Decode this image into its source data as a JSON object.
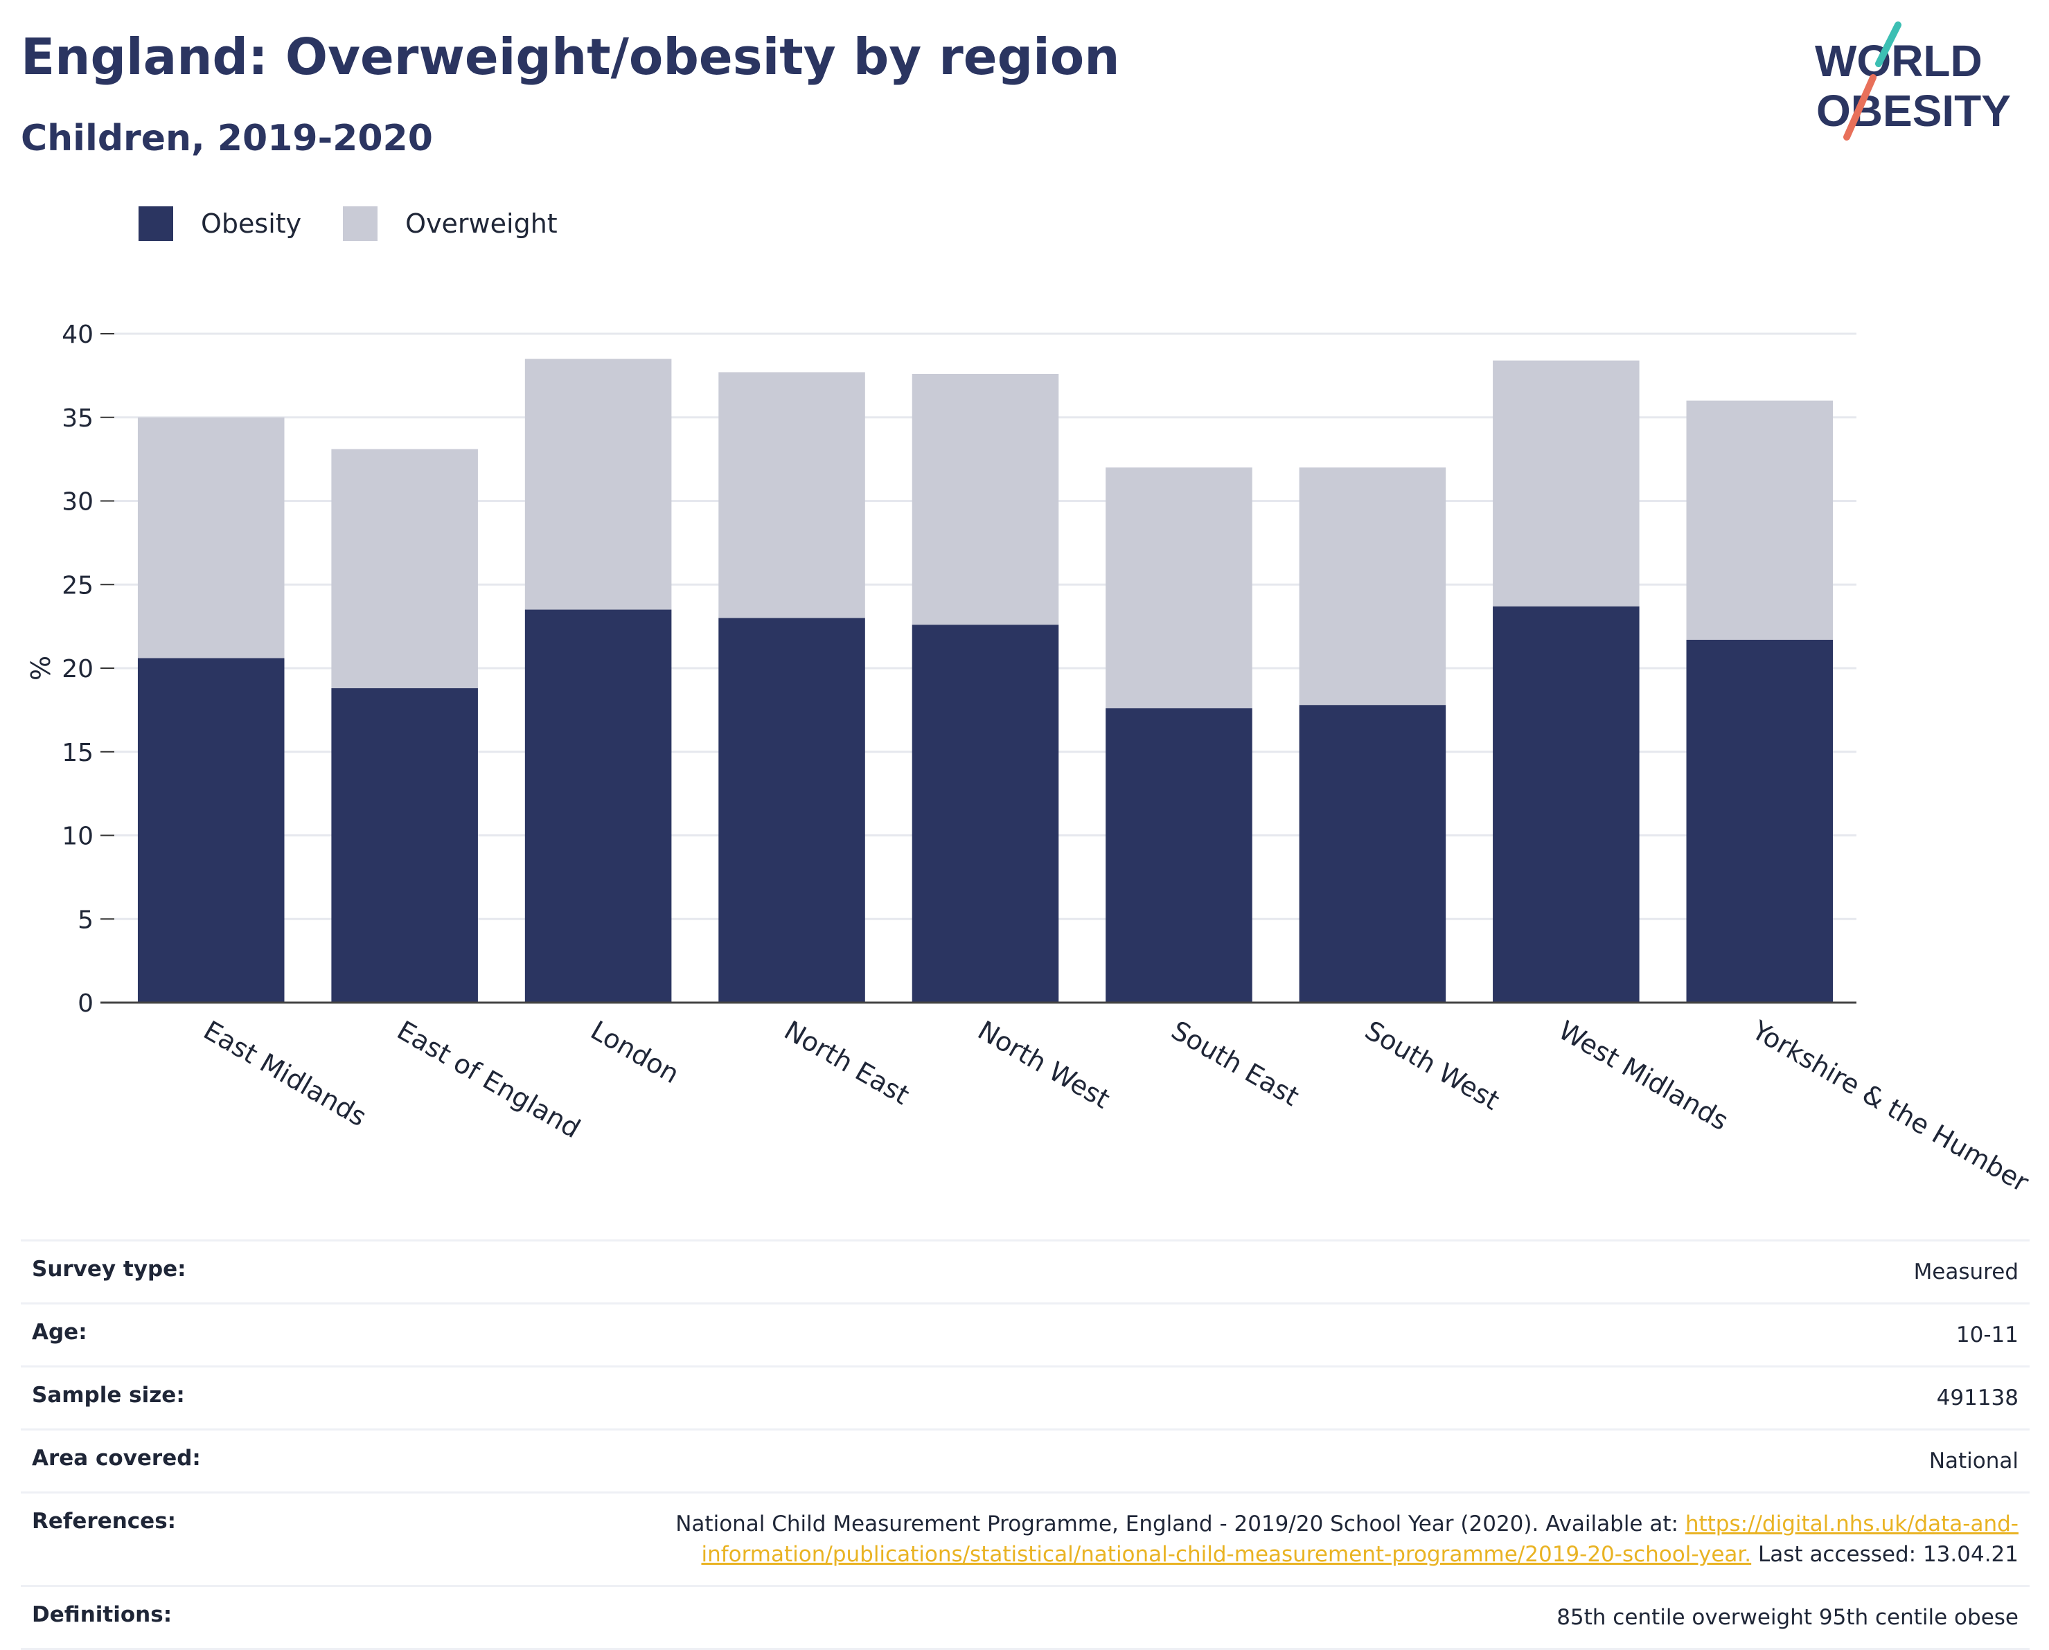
{
  "header": {
    "title": "England: Overweight/obesity by region",
    "subtitle": "Children, 2019-2020",
    "logo_line1": "WORLD",
    "logo_line2": "OBESITY"
  },
  "colors": {
    "obesity": "#2b3561",
    "overweight": "#c9cbd6",
    "title": "#2b3561",
    "link": "#e9b323",
    "logo_teal": "#3cbfb3",
    "logo_coral": "#e8705a"
  },
  "chart_data": {
    "type": "bar",
    "stacked": true,
    "ylabel": "%",
    "xlabel": "",
    "ylim": [
      0,
      40
    ],
    "yticks": [
      0,
      5,
      10,
      15,
      20,
      25,
      30,
      35,
      40
    ],
    "grid": true,
    "legend_position": "top-left",
    "categories": [
      "East Midlands",
      "East of England",
      "London",
      "North East",
      "North West",
      "South East",
      "South West",
      "West Midlands",
      "Yorkshire & the Humber"
    ],
    "series": [
      {
        "name": "Obesity",
        "values": [
          20.6,
          18.8,
          23.5,
          23.0,
          22.6,
          17.6,
          17.8,
          23.7,
          21.7
        ]
      },
      {
        "name": "Overweight",
        "values": [
          14.4,
          14.3,
          15.0,
          14.7,
          15.0,
          14.4,
          14.2,
          14.7,
          14.3
        ]
      }
    ]
  },
  "info": {
    "survey_type": {
      "label": "Survey type:",
      "value": "Measured"
    },
    "age": {
      "label": "Age:",
      "value": "10-11"
    },
    "sample_size": {
      "label": "Sample size:",
      "value": "491138"
    },
    "area": {
      "label": "Area covered:",
      "value": "National"
    },
    "references": {
      "label": "References:",
      "text": "National Child Measurement Programme, England - 2019/20 School Year (2020). Available at: ",
      "link": "https://digital.nhs.uk/data-and-information/publications/statistical/national-child-measurement-programme/2019-20-school-year.",
      "suffix": " Last accessed: 13.04.21"
    },
    "definitions": {
      "label": "Definitions:",
      "value": "85th centile overweight 95th centile obese"
    }
  }
}
